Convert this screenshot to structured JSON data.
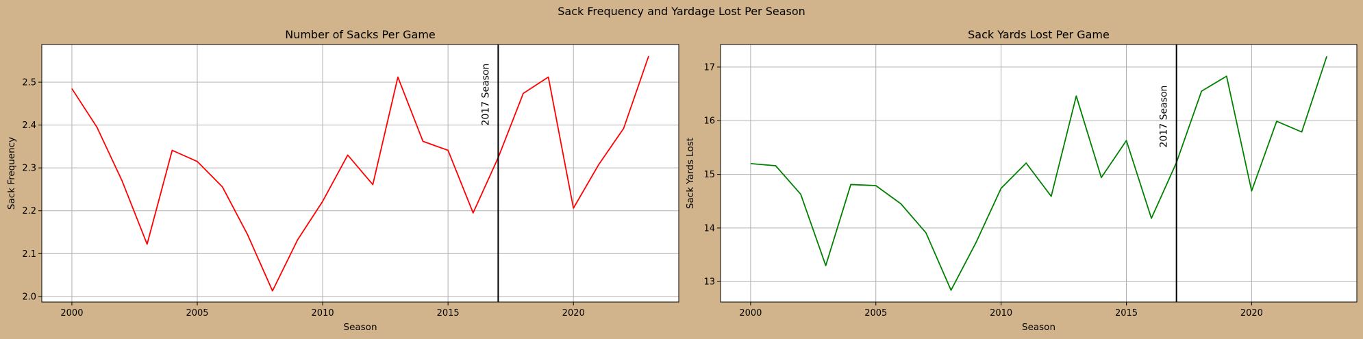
{
  "figure": {
    "title": "Sack Frequency and Yardage Lost Per Season"
  },
  "colors": {
    "background": "#d2b48c",
    "plot_bg": "#ffffff",
    "grid": "#b0b0b0",
    "vline": "#000000"
  },
  "chart_data": [
    {
      "type": "line",
      "title": "Number of Sacks Per Game",
      "xlabel": "Season",
      "ylabel": "Sack Frequency",
      "xlim": [
        1998.8,
        2024.2
      ],
      "ylim": [
        1.987,
        2.588
      ],
      "xticks": [
        2000,
        2005,
        2010,
        2015,
        2020
      ],
      "yticks": [
        2.0,
        2.1,
        2.2,
        2.3,
        2.4,
        2.5
      ],
      "ytick_labels": [
        "2.0",
        "2.1",
        "2.2",
        "2.3",
        "2.4",
        "2.5"
      ],
      "grid": true,
      "series": [
        {
          "color": "#ff0000",
          "x": [
            2000,
            2001,
            2002,
            2003,
            2004,
            2005,
            2006,
            2007,
            2008,
            2009,
            2010,
            2011,
            2012,
            2013,
            2014,
            2015,
            2016,
            2017,
            2018,
            2019,
            2020,
            2021,
            2022,
            2023
          ],
          "values": [
            2.485,
            2.395,
            2.27,
            2.122,
            2.341,
            2.315,
            2.256,
            2.145,
            2.013,
            2.132,
            2.222,
            2.33,
            2.261,
            2.512,
            2.362,
            2.341,
            2.195,
            2.324,
            2.474,
            2.512,
            2.206,
            2.307,
            2.392,
            2.561
          ]
        }
      ],
      "annotation": {
        "x": 2017,
        "label": "2017 Season"
      }
    },
    {
      "type": "line",
      "title": "Sack Yards Lost Per Game",
      "xlabel": "Season",
      "ylabel": "Sack Yards Lost",
      "xlim": [
        1998.8,
        2024.2
      ],
      "ylim": [
        12.62,
        17.42
      ],
      "xticks": [
        2000,
        2005,
        2010,
        2015,
        2020
      ],
      "yticks": [
        13,
        14,
        15,
        16,
        17
      ],
      "ytick_labels": [
        "13",
        "14",
        "15",
        "16",
        "17"
      ],
      "grid": true,
      "series": [
        {
          "color": "#008000",
          "x": [
            2000,
            2001,
            2002,
            2003,
            2004,
            2005,
            2006,
            2007,
            2008,
            2009,
            2010,
            2011,
            2012,
            2013,
            2014,
            2015,
            2016,
            2017,
            2018,
            2019,
            2020,
            2021,
            2022,
            2023
          ],
          "values": [
            15.2,
            15.16,
            14.63,
            13.3,
            14.81,
            14.79,
            14.45,
            13.91,
            12.84,
            13.73,
            14.74,
            15.21,
            14.59,
            16.46,
            14.94,
            15.63,
            14.18,
            15.22,
            16.55,
            16.83,
            14.69,
            15.99,
            15.79,
            17.2
          ]
        }
      ],
      "annotation": {
        "x": 2017,
        "label": "2017 Season"
      }
    }
  ]
}
